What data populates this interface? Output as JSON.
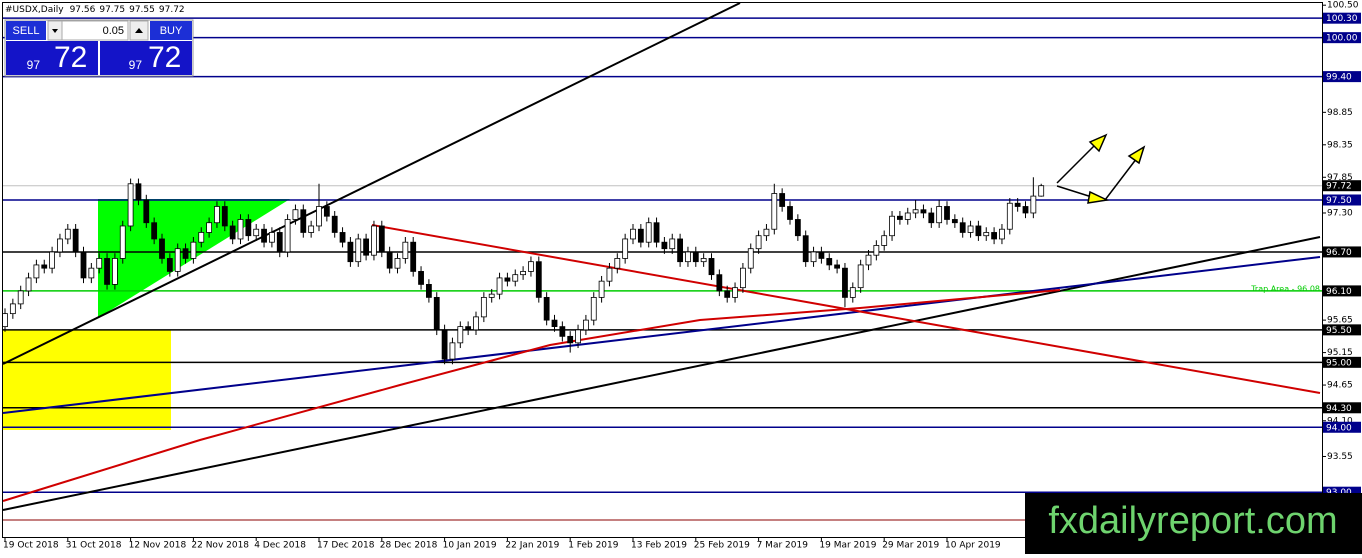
{
  "chart_data": {
    "type": "candlestick",
    "title": "#USDX,Daily",
    "annotation": "Trap Area - 96.08",
    "watermark": "fxdailyreport.com",
    "up_color": "#ffffff",
    "down_color": "#000000",
    "ylim": [
      92.31,
      100.58
    ],
    "yticks": [
      {
        "value": 100.5,
        "label": "100.50"
      },
      98.85,
      98.35,
      97.85,
      {
        "value": 97.3,
        "label": "97.30"
      },
      95.65,
      95.15,
      94.65,
      {
        "value": 94.1,
        "label": "94.10"
      },
      93.55
    ],
    "levels": [
      {
        "value": 100.3,
        "label": "100.30",
        "color": "#00008b"
      },
      {
        "value": 100,
        "label": "100.00",
        "color": "#00008b"
      },
      {
        "value": 99.4,
        "label": "99.40",
        "color": "#00008b"
      },
      {
        "value": 97.72,
        "label": "97.72",
        "color": "#c0c0c0"
      },
      {
        "value": 97.5,
        "label": "97.50",
        "color": "#00008b"
      },
      {
        "value": 96.7,
        "label": "96.70",
        "color": "#000000"
      },
      {
        "value": 96.1,
        "label": "96.10",
        "color": "#00cc00"
      },
      {
        "value": 95.5,
        "label": "95.50",
        "color": "#000000"
      },
      {
        "value": 95,
        "label": "95.00",
        "color": "#000000"
      },
      {
        "value": 94.3,
        "label": "94.30",
        "color": "#000000"
      },
      {
        "value": 94,
        "label": "94.00",
        "color": "#00008b"
      },
      {
        "value": 93,
        "label": "93.00",
        "color": "#00008b"
      }
    ],
    "categories": [
      "19 Oct 2018",
      null,
      null,
      null,
      null,
      null,
      null,
      null,
      "31 Oct 2018",
      null,
      null,
      null,
      null,
      null,
      null,
      null,
      "12 Nov 2018",
      null,
      null,
      null,
      null,
      null,
      null,
      null,
      "22 Nov 2018",
      null,
      null,
      null,
      null,
      null,
      null,
      null,
      "4 Dec 2018",
      null,
      null,
      null,
      null,
      null,
      null,
      null,
      "17 Dec 2018",
      null,
      null,
      null,
      null,
      null,
      null,
      null,
      "28 Dec 2018",
      null,
      null,
      null,
      null,
      null,
      null,
      null,
      "10 Jan 2019",
      null,
      null,
      null,
      null,
      null,
      null,
      null,
      "22 Jan 2019",
      null,
      null,
      null,
      null,
      null,
      null,
      null,
      "1 Feb 2019",
      null,
      null,
      null,
      null,
      null,
      null,
      null,
      "13 Feb 2019",
      null,
      null,
      null,
      null,
      null,
      null,
      null,
      "25 Feb 2019",
      null,
      null,
      null,
      null,
      null,
      null,
      null,
      "7 Mar 2019",
      null,
      null,
      null,
      null,
      null,
      null,
      null,
      "19 Mar 2019",
      null,
      null,
      null,
      null,
      null,
      null,
      null,
      "29 Mar 2019",
      null,
      null,
      null,
      null,
      null,
      null,
      null,
      "10 Apr 2019",
      null,
      null,
      null,
      null,
      null,
      null,
      null,
      null,
      null,
      null,
      null,
      null
    ],
    "ohlc": [
      [
        95.55,
        95.83,
        95.47,
        95.75
      ],
      [
        95.75,
        95.98,
        95.67,
        95.9
      ],
      [
        95.9,
        96.18,
        95.82,
        96.1
      ],
      [
        96.1,
        96.38,
        96.02,
        96.3
      ],
      [
        96.3,
        96.58,
        96.22,
        96.5
      ],
      [
        96.5,
        96.58,
        96.37,
        96.45
      ],
      [
        96.45,
        96.78,
        96.37,
        96.7
      ],
      [
        96.7,
        96.98,
        96.62,
        96.9
      ],
      [
        96.9,
        97.13,
        96.82,
        97.05
      ],
      [
        97.05,
        97.13,
        96.62,
        96.7
      ],
      [
        96.7,
        96.78,
        96.22,
        96.3
      ],
      [
        96.3,
        96.53,
        96.22,
        96.45
      ],
      [
        96.45,
        96.68,
        96.37,
        96.6
      ],
      [
        96.6,
        96.68,
        96.12,
        96.2
      ],
      [
        96.2,
        96.68,
        96.12,
        96.6
      ],
      [
        96.6,
        97.18,
        96.52,
        97.1
      ],
      [
        97.1,
        97.83,
        97.02,
        97.75
      ],
      [
        97.75,
        97.83,
        97.42,
        97.5
      ],
      [
        97.5,
        97.58,
        97.07,
        97.15
      ],
      [
        97.15,
        97.23,
        96.82,
        96.9
      ],
      [
        96.9,
        96.98,
        96.52,
        96.6
      ],
      [
        96.6,
        96.68,
        96.32,
        96.4
      ],
      [
        96.4,
        96.83,
        96.32,
        96.75
      ],
      [
        96.75,
        96.83,
        96.52,
        96.6
      ],
      [
        96.6,
        96.93,
        96.52,
        96.85
      ],
      [
        96.85,
        97.08,
        96.77,
        97.0
      ],
      [
        97.0,
        97.23,
        96.92,
        97.15
      ],
      [
        97.15,
        97.48,
        97.07,
        97.4
      ],
      [
        97.4,
        97.48,
        97.02,
        97.1
      ],
      [
        97.1,
        97.18,
        96.82,
        96.9
      ],
      [
        96.9,
        97.28,
        96.82,
        97.2
      ],
      [
        97.2,
        97.28,
        96.87,
        96.95
      ],
      [
        96.95,
        97.13,
        96.87,
        97.05
      ],
      [
        97.05,
        97.13,
        96.77,
        96.85
      ],
      [
        96.85,
        97.08,
        96.77,
        97.0
      ],
      [
        97.0,
        97.08,
        96.62,
        96.7
      ],
      [
        96.7,
        97.28,
        96.62,
        97.2
      ],
      [
        97.2,
        97.43,
        97.12,
        97.35
      ],
      [
        97.35,
        97.43,
        96.92,
        97.0
      ],
      [
        97.0,
        97.18,
        96.92,
        97.1
      ],
      [
        97.1,
        97.75,
        97.02,
        97.4
      ],
      [
        97.4,
        97.48,
        97.17,
        97.25
      ],
      [
        97.25,
        97.33,
        96.92,
        97.0
      ],
      [
        97.0,
        97.08,
        96.77,
        96.85
      ],
      [
        96.85,
        96.93,
        96.47,
        96.55
      ],
      [
        96.55,
        96.98,
        96.47,
        96.9
      ],
      [
        96.9,
        96.98,
        96.57,
        96.65
      ],
      [
        96.65,
        97.18,
        96.57,
        97.1
      ],
      [
        97.1,
        97.18,
        96.62,
        96.7
      ],
      [
        96.7,
        96.78,
        96.37,
        96.45
      ],
      [
        96.45,
        96.68,
        96.37,
        96.6
      ],
      [
        96.6,
        96.93,
        96.52,
        96.85
      ],
      [
        96.85,
        96.93,
        96.32,
        96.4
      ],
      [
        96.4,
        96.48,
        96.12,
        96.2
      ],
      [
        96.2,
        96.28,
        95.92,
        96.0
      ],
      [
        96.0,
        96.08,
        95.42,
        95.5
      ],
      [
        95.5,
        95.58,
        94.97,
        95.05
      ],
      [
        95.05,
        95.38,
        94.97,
        95.3
      ],
      [
        95.3,
        95.63,
        95.22,
        95.55
      ],
      [
        95.55,
        95.63,
        95.42,
        95.5
      ],
      [
        95.5,
        95.78,
        95.42,
        95.7
      ],
      [
        95.7,
        96.08,
        95.62,
        96.0
      ],
      [
        96.0,
        96.13,
        95.92,
        96.05
      ],
      [
        96.05,
        96.38,
        95.97,
        96.3
      ],
      [
        96.3,
        96.38,
        96.17,
        96.25
      ],
      [
        96.25,
        96.43,
        96.17,
        96.35
      ],
      [
        96.35,
        96.48,
        96.27,
        96.4
      ],
      [
        96.4,
        96.63,
        96.32,
        96.55
      ],
      [
        96.55,
        96.63,
        95.92,
        96.0
      ],
      [
        96.0,
        96.08,
        95.57,
        95.65
      ],
      [
        95.65,
        95.73,
        95.47,
        95.55
      ],
      [
        95.55,
        95.63,
        95.32,
        95.4
      ],
      [
        95.4,
        95.48,
        95.15,
        95.3
      ],
      [
        95.3,
        95.58,
        95.22,
        95.5
      ],
      [
        95.5,
        95.73,
        95.42,
        95.65
      ],
      [
        95.65,
        96.08,
        95.57,
        96.0
      ],
      [
        96.0,
        96.33,
        95.92,
        96.25
      ],
      [
        96.25,
        96.53,
        96.17,
        96.45
      ],
      [
        96.45,
        96.68,
        96.37,
        96.6
      ],
      [
        96.6,
        96.98,
        96.52,
        96.9
      ],
      [
        96.9,
        97.13,
        96.82,
        97.05
      ],
      [
        97.05,
        97.13,
        96.77,
        96.85
      ],
      [
        96.85,
        97.23,
        96.77,
        97.15
      ],
      [
        97.15,
        97.23,
        96.77,
        96.85
      ],
      [
        96.85,
        96.93,
        96.67,
        96.75
      ],
      [
        96.75,
        96.98,
        96.67,
        96.9
      ],
      [
        96.9,
        96.98,
        96.47,
        96.55
      ],
      [
        96.55,
        96.78,
        96.47,
        96.7
      ],
      [
        96.7,
        96.78,
        96.47,
        96.55
      ],
      [
        96.55,
        96.68,
        96.47,
        96.6
      ],
      [
        96.6,
        96.68,
        96.27,
        96.35
      ],
      [
        96.35,
        96.43,
        96.02,
        96.1
      ],
      [
        96.1,
        96.18,
        95.92,
        96.0
      ],
      [
        96.0,
        96.23,
        95.92,
        96.15
      ],
      [
        96.15,
        96.53,
        96.07,
        96.45
      ],
      [
        96.45,
        96.83,
        96.37,
        96.75
      ],
      [
        96.75,
        97.03,
        96.67,
        96.95
      ],
      [
        96.95,
        97.13,
        96.87,
        97.05
      ],
      [
        97.05,
        97.75,
        96.97,
        97.6
      ],
      [
        97.6,
        97.68,
        97.32,
        97.4
      ],
      [
        97.4,
        97.48,
        97.12,
        97.2
      ],
      [
        97.2,
        97.28,
        96.87,
        96.95
      ],
      [
        96.95,
        97.03,
        96.47,
        96.55
      ],
      [
        96.55,
        96.78,
        96.47,
        96.7
      ],
      [
        96.7,
        96.78,
        96.52,
        96.6
      ],
      [
        96.6,
        96.68,
        96.42,
        96.5
      ],
      [
        96.5,
        96.58,
        96.37,
        96.45
      ],
      [
        96.45,
        96.53,
        95.85,
        96.0
      ],
      [
        96.0,
        96.23,
        95.92,
        96.15
      ],
      [
        96.15,
        96.58,
        96.07,
        96.5
      ],
      [
        96.5,
        96.73,
        96.42,
        96.65
      ],
      [
        96.65,
        96.88,
        96.57,
        96.8
      ],
      [
        96.8,
        97.03,
        96.72,
        96.95
      ],
      [
        96.95,
        97.33,
        96.87,
        97.25
      ],
      [
        97.25,
        97.33,
        97.12,
        97.2
      ],
      [
        97.2,
        97.38,
        97.12,
        97.3
      ],
      [
        97.3,
        97.5,
        97.22,
        97.35
      ],
      [
        97.35,
        97.43,
        97.22,
        97.3
      ],
      [
        97.3,
        97.38,
        97.07,
        97.15
      ],
      [
        97.15,
        97.5,
        97.07,
        97.4
      ],
      [
        97.4,
        97.48,
        97.12,
        97.2
      ],
      [
        97.2,
        97.28,
        97.07,
        97.15
      ],
      [
        97.15,
        97.23,
        96.92,
        97.0
      ],
      [
        97.0,
        97.18,
        96.92,
        97.1
      ],
      [
        97.1,
        97.18,
        96.87,
        96.95
      ],
      [
        96.95,
        97.08,
        96.87,
        97.0
      ],
      [
        97.0,
        97.08,
        96.82,
        96.9
      ],
      [
        96.9,
        97.13,
        96.82,
        97.05
      ],
      [
        97.05,
        97.53,
        96.97,
        97.45
      ],
      [
        97.45,
        97.53,
        97.32,
        97.4
      ],
      [
        97.4,
        97.48,
        97.22,
        97.3
      ],
      [
        97.3,
        97.85,
        97.22,
        97.56
      ],
      [
        97.56,
        97.75,
        97.55,
        97.72
      ]
    ]
  },
  "trade_panel": {
    "sell": "SELL",
    "lot": "0.05",
    "buy": "BUY",
    "sell_small": "97",
    "sell_big": "72",
    "buy_small": "97",
    "buy_big": "72"
  }
}
